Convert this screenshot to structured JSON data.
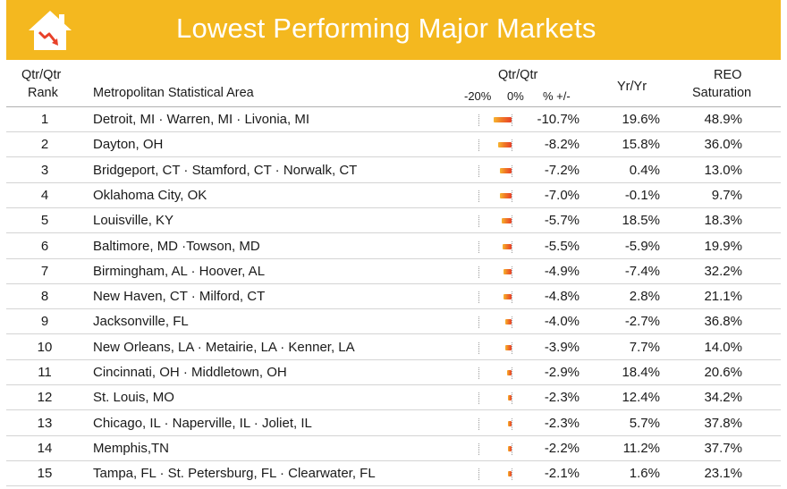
{
  "banner": {
    "title": "Lowest Performing Major Markets"
  },
  "colors": {
    "banner": "#f4b81f",
    "bar_start": "#f7b530",
    "bar_end": "#e8412a"
  },
  "icons": {
    "logo": "house-with-falling-arrow-icon"
  },
  "headers": {
    "rank_line1": "Qtr/Qtr",
    "rank_line2": "Rank",
    "msa": "Metropolitan Statistical Area",
    "qtr_title": "Qtr/Qtr",
    "qtr_minus20": "-20%",
    "qtr_zero": "0%",
    "qtr_pct": "%  +/-",
    "yr": "Yr/Yr",
    "reo_line1": "REO",
    "reo_line2": "Saturation"
  },
  "chart_data": {
    "type": "table",
    "title": "Lowest Performing Major Markets",
    "columns": [
      "Qtr/Qtr Rank",
      "Metropolitan Statistical Area",
      "Qtr/Qtr % +/-",
      "Yr/Yr",
      "REO Saturation"
    ],
    "bar_axis": {
      "min": -20,
      "max": 0,
      "unit": "%"
    },
    "rows": [
      {
        "rank": "1",
        "msa": "Detroit, MI · Warren, MI · Livonia, MI",
        "qtr_value": -10.7,
        "qtr": "-10.7%",
        "yr": "19.6%",
        "reo": "48.9%"
      },
      {
        "rank": "2",
        "msa": "Dayton, OH",
        "qtr_value": -8.2,
        "qtr": "-8.2%",
        "yr": "15.8%",
        "reo": "36.0%"
      },
      {
        "rank": "3",
        "msa": "Bridgeport, CT · Stamford, CT · Norwalk, CT",
        "qtr_value": -7.2,
        "qtr": "-7.2%",
        "yr": "0.4%",
        "reo": "13.0%"
      },
      {
        "rank": "4",
        "msa": "Oklahoma City, OK",
        "qtr_value": -7.0,
        "qtr": "-7.0%",
        "yr": "-0.1%",
        "reo": "9.7%"
      },
      {
        "rank": "5",
        "msa": "Louisville, KY",
        "qtr_value": -5.7,
        "qtr": "-5.7%",
        "yr": "18.5%",
        "reo": "18.3%"
      },
      {
        "rank": "6",
        "msa": "Baltimore, MD ·Towson, MD",
        "qtr_value": -5.5,
        "qtr": "-5.5%",
        "yr": "-5.9%",
        "reo": "19.9%"
      },
      {
        "rank": "7",
        "msa": "Birmingham, AL · Hoover, AL",
        "qtr_value": -4.9,
        "qtr": "-4.9%",
        "yr": "-7.4%",
        "reo": "32.2%"
      },
      {
        "rank": "8",
        "msa": "New Haven, CT · Milford, CT",
        "qtr_value": -4.8,
        "qtr": "-4.8%",
        "yr": "2.8%",
        "reo": "21.1%"
      },
      {
        "rank": "9",
        "msa": "Jacksonville, FL",
        "qtr_value": -4.0,
        "qtr": "-4.0%",
        "yr": "-2.7%",
        "reo": "36.8%"
      },
      {
        "rank": "10",
        "msa": "New Orleans, LA · Metairie, LA · Kenner, LA",
        "qtr_value": -3.9,
        "qtr": "-3.9%",
        "yr": "7.7%",
        "reo": "14.0%"
      },
      {
        "rank": "11",
        "msa": "Cincinnati, OH · Middletown, OH",
        "qtr_value": -2.9,
        "qtr": "-2.9%",
        "yr": "18.4%",
        "reo": "20.6%"
      },
      {
        "rank": "12",
        "msa": "St. Louis, MO",
        "qtr_value": -2.3,
        "qtr": "-2.3%",
        "yr": "12.4%",
        "reo": "34.2%"
      },
      {
        "rank": "13",
        "msa": "Chicago, IL · Naperville, IL · Joliet, IL",
        "qtr_value": -2.3,
        "qtr": "-2.3%",
        "yr": "5.7%",
        "reo": "37.8%"
      },
      {
        "rank": "14",
        "msa": "Memphis,TN",
        "qtr_value": -2.2,
        "qtr": "-2.2%",
        "yr": "11.2%",
        "reo": "37.7%"
      },
      {
        "rank": "15",
        "msa": "Tampa, FL · St. Petersburg, FL · Clearwater, FL",
        "qtr_value": -2.1,
        "qtr": "-2.1%",
        "yr": "1.6%",
        "reo": "23.1%"
      }
    ]
  }
}
